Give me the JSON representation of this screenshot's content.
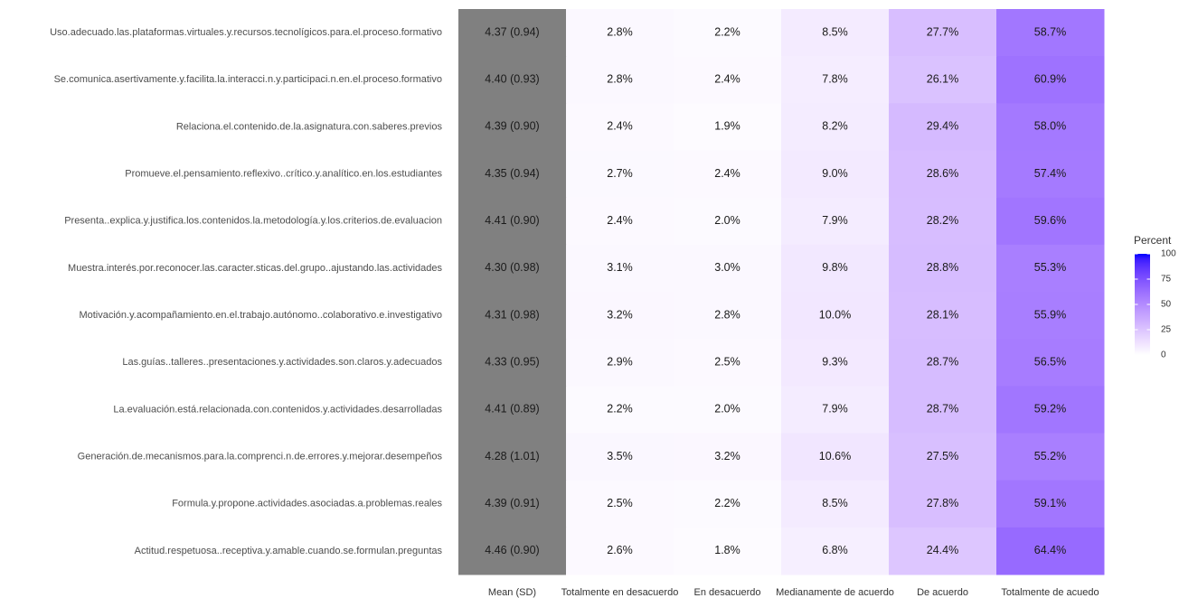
{
  "chart_data": {
    "type": "heatmap",
    "rows": [
      "Uso.adecuado.las.plataformas.virtuales.y.recursos.tecnolígicos.para.el.proceso.formativo",
      "Se.comunica.asertivamente.y.facilita.la.interacci.n.y.participaci.n.en.el.proceso.formativo",
      "Relaciona.el.contenido.de.la.asignatura.con.saberes.previos",
      "Promueve.el.pensamiento.reflexivo..crítico.y.analítico.en.los.estudiantes",
      "Presenta..explica.y.justifica.los.contenidos.la.metodología.y.los.criterios.de.evaluacion",
      "Muestra.interés.por.reconocer.las.caracter.sticas.del.grupo..ajustando.las.actividades",
      "Motivación.y.acompañamiento.en.el.trabajo.autónomo..colaborativo.e.investigativo",
      "Las.guías..talleres..presentaciones.y.actividades.son.claros.y.adecuados",
      "La.evaluación.está.relacionada.con.contenidos.y.actividades.desarrolladas",
      "Generación.de.mecanismos.para.la.comprenci.n.de.errores.y.mejorar.desempeños",
      "Formula.y.propone.actividades.asociadas.a.problemas.reales",
      "Actitud.respetuosa..receptiva.y.amable.cuando.se.formulan.preguntas"
    ],
    "columns": [
      "Mean (SD)",
      "Totalmente en desacuerdo",
      "En desacuerdo",
      "Medianamente de acuerdo",
      "De acuerdo",
      "Totalmente de acuedo"
    ],
    "summary": {
      "color": "#808080",
      "values": [
        4.37,
        4.4,
        4.39,
        4.35,
        4.41,
        4.3,
        4.31,
        4.33,
        4.41,
        4.28,
        4.39,
        4.46
      ],
      "errors": [
        0.94,
        0.93,
        0.9,
        0.94,
        0.9,
        0.98,
        0.98,
        0.95,
        0.89,
        1.01,
        0.91,
        0.9
      ],
      "value_labels": [
        "4.37 (0.94)",
        "4.40 (0.93)",
        "4.39 (0.90)",
        "4.35 (0.94)",
        "4.41 (0.90)",
        "4.30 (0.98)",
        "4.31 (0.98)",
        "4.33 (0.95)",
        "4.41 (0.89)",
        "4.28 (1.01)",
        "4.39 (0.91)",
        "4.46 (0.90)"
      ]
    },
    "series": [
      {
        "values": [
          2.8,
          2.8,
          2.4,
          2.7,
          2.4,
          3.1,
          3.2,
          2.9,
          2.2,
          3.5,
          2.5,
          2.6
        ],
        "value_labels": [
          "2.8%",
          "2.8%",
          "2.4%",
          "2.7%",
          "2.4%",
          "3.1%",
          "3.2%",
          "2.9%",
          "2.2%",
          "3.5%",
          "2.5%",
          "2.6%"
        ]
      },
      {
        "values": [
          2.2,
          2.4,
          1.9,
          2.4,
          2.0,
          3.0,
          2.8,
          2.5,
          2.0,
          3.2,
          2.2,
          1.8
        ],
        "value_labels": [
          "2.2%",
          "2.4%",
          "1.9%",
          "2.4%",
          "2.0%",
          "3.0%",
          "2.8%",
          "2.5%",
          "2.0%",
          "3.2%",
          "2.2%",
          "1.8%"
        ]
      },
      {
        "values": [
          8.5,
          7.8,
          8.2,
          9.0,
          7.9,
          9.8,
          10.0,
          9.3,
          7.9,
          10.6,
          8.5,
          6.8
        ],
        "value_labels": [
          "8.5%",
          "7.8%",
          "8.2%",
          "9.0%",
          "7.9%",
          "9.8%",
          "10.0%",
          "9.3%",
          "7.9%",
          "10.6%",
          "8.5%",
          "6.8%"
        ]
      },
      {
        "values": [
          27.7,
          26.1,
          29.4,
          28.6,
          28.2,
          28.8,
          28.1,
          28.7,
          28.7,
          27.5,
          27.8,
          24.4
        ],
        "value_labels": [
          "27.7%",
          "26.1%",
          "29.4%",
          "28.6%",
          "28.2%",
          "28.8%",
          "28.1%",
          "28.7%",
          "28.7%",
          "27.5%",
          "27.8%",
          "24.4%"
        ]
      },
      {
        "values": [
          58.7,
          60.9,
          58.0,
          57.4,
          59.6,
          55.3,
          55.9,
          56.5,
          59.2,
          55.2,
          59.1,
          64.4
        ],
        "value_labels": [
          "58.7%",
          "60.9%",
          "58.0%",
          "57.4%",
          "59.6%",
          "55.3%",
          "55.9%",
          "56.5%",
          "59.2%",
          "55.2%",
          "59.1%",
          "64.4%"
        ]
      }
    ],
    "colorbar": {
      "title": "Percent",
      "colors": [
        "#ffffff",
        "#0000ff"
      ],
      "clim": [
        0,
        100
      ],
      "ticks": [
        0,
        25,
        50,
        75,
        100
      ]
    }
  }
}
